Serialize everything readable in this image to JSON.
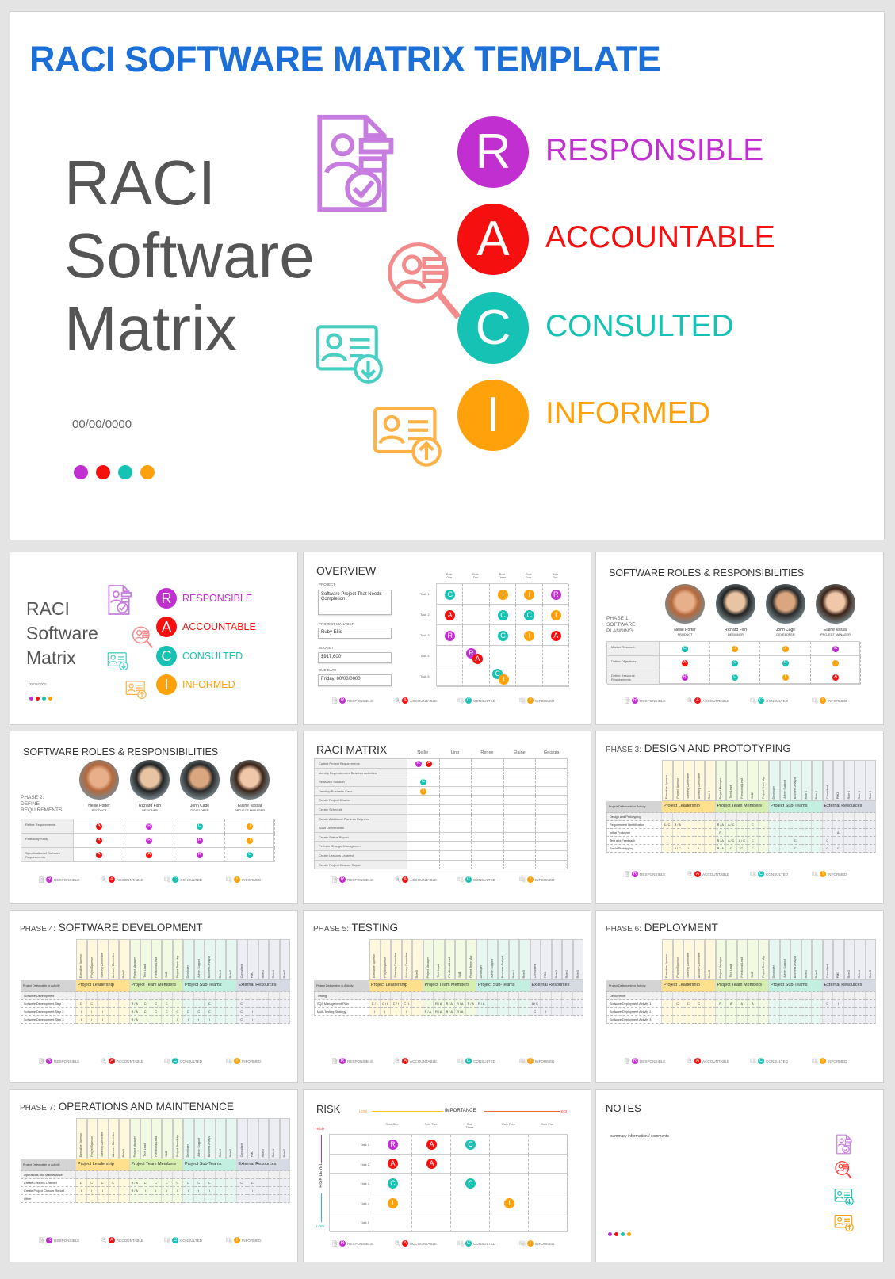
{
  "main": {
    "title": "RACI SOFTWARE MATRIX TEMPLATE",
    "heading_lines": [
      "RACI",
      "Software",
      "Matrix"
    ],
    "date": "00/00/0000"
  },
  "raci": [
    {
      "letter": "R",
      "label": "RESPONSIBLE",
      "color": "#c12fd1"
    },
    {
      "letter": "A",
      "label": "ACCOUNTABLE",
      "color": "#f50f0f"
    },
    {
      "letter": "C",
      "label": "CONSULTED",
      "color": "#16c2b3"
    },
    {
      "letter": "I",
      "label": "INFORMED",
      "color": "#ffa10a"
    }
  ],
  "overview": {
    "title": "OVERVIEW",
    "fields": [
      {
        "label": "PROJECT",
        "value": "Software Project That Needs Completion"
      },
      {
        "label": "PROJECT MANAGER",
        "value": "Ruby Ellis"
      },
      {
        "label": "BUDGET",
        "value": "$917,600"
      },
      {
        "label": "DUE DATE",
        "value": "Friday, 00/00/0000"
      }
    ],
    "roles": [
      "Role One",
      "Role Two",
      "Role Three",
      "Role Four",
      "Role Five"
    ],
    "rows": [
      {
        "task": "Task 1",
        "cells": [
          [
            "C"
          ],
          [],
          [
            "I"
          ],
          [
            "I"
          ],
          [
            "R"
          ]
        ]
      },
      {
        "task": "Task 2",
        "cells": [
          [
            "A"
          ],
          [],
          [
            "C"
          ],
          [
            "C"
          ],
          [
            "I"
          ]
        ]
      },
      {
        "task": "Task 3",
        "cells": [
          [
            "R"
          ],
          [],
          [
            "C"
          ],
          [
            "I"
          ],
          [
            "A"
          ]
        ]
      },
      {
        "task": "Task 4",
        "cells": [
          [],
          [
            "R",
            "A"
          ],
          [],
          [],
          []
        ]
      },
      {
        "task": "Task 5",
        "cells": [
          [],
          [],
          [
            "C",
            "I"
          ],
          [],
          []
        ]
      }
    ]
  },
  "people": [
    {
      "name": "Nellie Porter",
      "role": "PRODUCT"
    },
    {
      "name": "Richard Fish",
      "role": "DESIGNER"
    },
    {
      "name": "John Cage",
      "role": "DEVELOPER"
    },
    {
      "name": "Elaine Vassal",
      "role": "PROJECT MANAGER"
    }
  ],
  "roles_phases": [
    {
      "title": "SOFTWARE ROLES & RESPONSIBILITIES",
      "phase_label": [
        "PHASE 1:",
        "SOFTWARE",
        "PLANNING"
      ],
      "rows": [
        {
          "activity": "Market Research",
          "cells": [
            "C",
            "I",
            "I",
            "R"
          ]
        },
        {
          "activity": "Define Objectives",
          "cells": [
            "A",
            "C",
            "C",
            "I"
          ]
        },
        {
          "activity": "Define Resource Requirements",
          "cells": [
            "R",
            "C",
            "I",
            "A"
          ]
        }
      ]
    },
    {
      "title": "SOFTWARE ROLES & RESPONSIBILITIES",
      "phase_label": [
        "PHASE 2:",
        "DEFINE",
        "REQUIREMENTS"
      ],
      "rows": [
        {
          "activity": "Refine Requirements",
          "cells": [
            "A",
            "R",
            "C",
            "I"
          ]
        },
        {
          "activity": "Feasibility Study",
          "cells": [
            "A",
            "R",
            "R",
            "I"
          ]
        },
        {
          "activity": "Specification of Software Requirements",
          "cells": [
            "A",
            "A",
            "R",
            "C"
          ]
        }
      ]
    }
  ],
  "raci_matrix": {
    "title": "RACI MATRIX",
    "people": [
      "Nellie",
      "Ling",
      "Renee",
      "Elaine",
      "Georgia"
    ],
    "rows": [
      {
        "activity": "Collect Project Requirements",
        "nellie": [
          "R",
          "A"
        ]
      },
      {
        "activity": "Identify Dependencies Between Activities",
        "nellie": []
      },
      {
        "activity": "Research Solution",
        "nellie": [
          "C"
        ]
      },
      {
        "activity": "Develop Business Case",
        "nellie": [
          "I"
        ]
      },
      {
        "activity": "Create Project Charter",
        "nellie": []
      },
      {
        "activity": "Create Schedule",
        "nellie": []
      },
      {
        "activity": "Create Additional Plans as Required",
        "nellie": []
      },
      {
        "activity": "Build Deliverables",
        "nellie": []
      },
      {
        "activity": "Create Status Report",
        "nellie": []
      },
      {
        "activity": "Perform Change Management",
        "nellie": []
      },
      {
        "activity": "Create Lessons Learned",
        "nellie": []
      },
      {
        "activity": "Create Project Closure Report",
        "nellie": []
      }
    ]
  },
  "phase_table": {
    "header_label": "Project Deliverable or Activity",
    "groups": [
      {
        "name": "Project Leadership",
        "head": "#ffe08c",
        "body": "#fff8dc"
      },
      {
        "name": "Project Team Members",
        "head": "#d6eeb0",
        "body": "#f2fae2"
      },
      {
        "name": "Project Sub-Teams",
        "head": "#c2efdf",
        "body": "#e6f7f1"
      },
      {
        "name": "External Resources",
        "head": "#d6dae3",
        "body": "#eceef3"
      }
    ],
    "roles": [
      "Executive Sponsor",
      "Project Sponsor",
      "Steering Committee",
      "Advisory Committee",
      "Role 5",
      "Project Manager",
      "Tech Lead",
      "Functional Lead",
      "SME",
      "Project Team Mgr.",
      "Developer",
      "Admin Support",
      "Business Analyst",
      "Role 4",
      "Role 5",
      "Consultant",
      "PMO",
      "Role 3",
      "Role 4",
      "Role 5"
    ]
  },
  "phases": [
    {
      "prefix": "PHASE 3:",
      "title": "DESIGN AND PROTOTYPING",
      "section": "Design and Prototyping",
      "rows": [
        {
          "name": "Requirement Identification",
          "cells": [
            "A / C",
            "R / A",
            "",
            "",
            "",
            "R / A",
            "A / C",
            "",
            "C",
            "",
            "",
            "",
            "",
            "",
            "",
            "",
            "",
            "",
            "",
            ""
          ]
        },
        {
          "name": "Initial Prototype",
          "cells": [
            "",
            "",
            "",
            "",
            "",
            "R",
            "",
            "",
            "",
            "",
            "",
            "",
            "",
            "",
            "",
            "",
            "A",
            "",
            "",
            ""
          ]
        },
        {
          "name": "Test and Feedback",
          "cells": [
            "I",
            "",
            "",
            "",
            "",
            "R / A",
            "A / C",
            "A / C",
            "C",
            "",
            "",
            "",
            "C",
            "",
            "",
            "C",
            "",
            "",
            "",
            ""
          ]
        },
        {
          "name": "Rapid Prototyping",
          "cells": [
            "I",
            "A / C",
            "I",
            "I",
            "",
            "R / A",
            "C",
            "C",
            "C",
            "",
            "",
            "",
            "C",
            "",
            "",
            "C",
            "C",
            "",
            "",
            ""
          ]
        }
      ]
    },
    {
      "prefix": "PHASE 4:",
      "title": "SOFTWARE DEVELOPMENT",
      "section": "Software Development",
      "rows": [
        {
          "name": "Software Development Step 1",
          "cells": [
            "C",
            "C",
            "",
            "",
            "",
            "R / A",
            "C",
            "C",
            "C",
            "",
            "",
            "",
            "C",
            "",
            "",
            "C",
            "",
            "",
            "",
            ""
          ]
        },
        {
          "name": "Software Development Step 2",
          "cells": [
            "I",
            "I",
            "I",
            "I",
            "",
            "R / A",
            "C",
            "C",
            "C",
            "C",
            "C",
            "C",
            "C",
            "",
            "",
            "C",
            "I",
            "",
            "",
            ""
          ]
        },
        {
          "name": "Software Development Step 3",
          "cells": [
            "I",
            "I",
            "I",
            "",
            "",
            "R / A",
            "",
            "",
            "",
            "I",
            "I",
            "I",
            "I",
            "",
            "",
            "C",
            "I",
            "",
            "",
            ""
          ]
        }
      ]
    },
    {
      "prefix": "PHASE 5:",
      "title": "TESTING",
      "section": "Testing",
      "rows": [
        {
          "name": "SQA Management Plan",
          "cells": [
            "C / I",
            "C / I",
            "C / I",
            "C / I",
            "",
            "",
            "R / A",
            "R / A",
            "R / A",
            "R / A",
            "R / A",
            "",
            "",
            "",
            "",
            "A / C",
            "",
            "",
            "",
            ""
          ]
        },
        {
          "name": "Multi-Testing Strategy",
          "cells": [
            "I",
            "I",
            "I",
            "I",
            "",
            "R / A",
            "R / A",
            "R / A",
            "R / A",
            "",
            "",
            "",
            "",
            "",
            "",
            "C",
            "I",
            "",
            "",
            ""
          ]
        }
      ]
    },
    {
      "prefix": "PHASE 6:",
      "title": "DEPLOYMENT",
      "section": "Deployment",
      "rows": [
        {
          "name": "Software Deployment Activity 1",
          "cells": [
            "",
            "C",
            "C",
            "C",
            "",
            "R",
            "A",
            "A",
            "A",
            "",
            "",
            "",
            "",
            "",
            "",
            "C",
            "I",
            "",
            "",
            ""
          ]
        },
        {
          "name": "Software Deployment Activity 2",
          "cells": [
            "",
            "",
            "",
            "",
            "",
            "",
            "",
            "",
            "",
            "",
            "",
            "",
            "",
            "",
            "",
            "",
            "",
            "",
            "",
            ""
          ]
        },
        {
          "name": "Software Deployment Activity 3",
          "cells": [
            "",
            "",
            "",
            "",
            "",
            "",
            "",
            "",
            "",
            "",
            "",
            "",
            "",
            "",
            "",
            "",
            "",
            "",
            "",
            ""
          ]
        }
      ]
    },
    {
      "prefix": "PHASE 7:",
      "title": "OPERATIONS AND MAINTENANCE",
      "section": "Operations and Maintenance",
      "rows": [
        {
          "name": "Create Lessons Learned",
          "cells": [
            "C",
            "C",
            "C",
            "C",
            "",
            "R / A",
            "C",
            "C",
            "C",
            "C",
            "C",
            "C",
            "C",
            "",
            "",
            "C",
            "C",
            "",
            "",
            ""
          ]
        },
        {
          "name": "Create Project Closure Report",
          "cells": [
            "I",
            "I",
            "I",
            "I",
            "",
            "R / A",
            "I",
            "I",
            "I",
            "I",
            "I",
            "I",
            "I",
            "",
            "",
            "",
            "I",
            "",
            "",
            ""
          ]
        },
        {
          "name": "Other",
          "cells": [
            "",
            "",
            "",
            "",
            "",
            "",
            "",
            "",
            "",
            "",
            "",
            "",
            "",
            "",
            "",
            "",
            "",
            "",
            "",
            ""
          ]
        }
      ]
    }
  ],
  "risk": {
    "title": "RISK",
    "low": "LOW",
    "high": "HIGH",
    "importance": "IMPORTANCE",
    "risk_level": "RISK LEVEL",
    "roles": [
      "Role One",
      "Role Two",
      "Role Three",
      "Role Four",
      "Role Five"
    ],
    "rows": [
      {
        "task": "Task 1",
        "cells": [
          "R",
          "A",
          "C",
          "",
          ""
        ]
      },
      {
        "task": "Task 2",
        "cells": [
          "A",
          "A",
          "",
          "",
          ""
        ]
      },
      {
        "task": "Task 3",
        "cells": [
          "C",
          "",
          "C",
          "",
          ""
        ]
      },
      {
        "task": "Task 4",
        "cells": [
          "I",
          "",
          "",
          "I",
          ""
        ]
      },
      {
        "task": "Task 5",
        "cells": [
          "",
          "",
          "",
          "",
          ""
        ]
      }
    ]
  },
  "notes": {
    "title": "NOTES",
    "text": "summary information / comments"
  }
}
